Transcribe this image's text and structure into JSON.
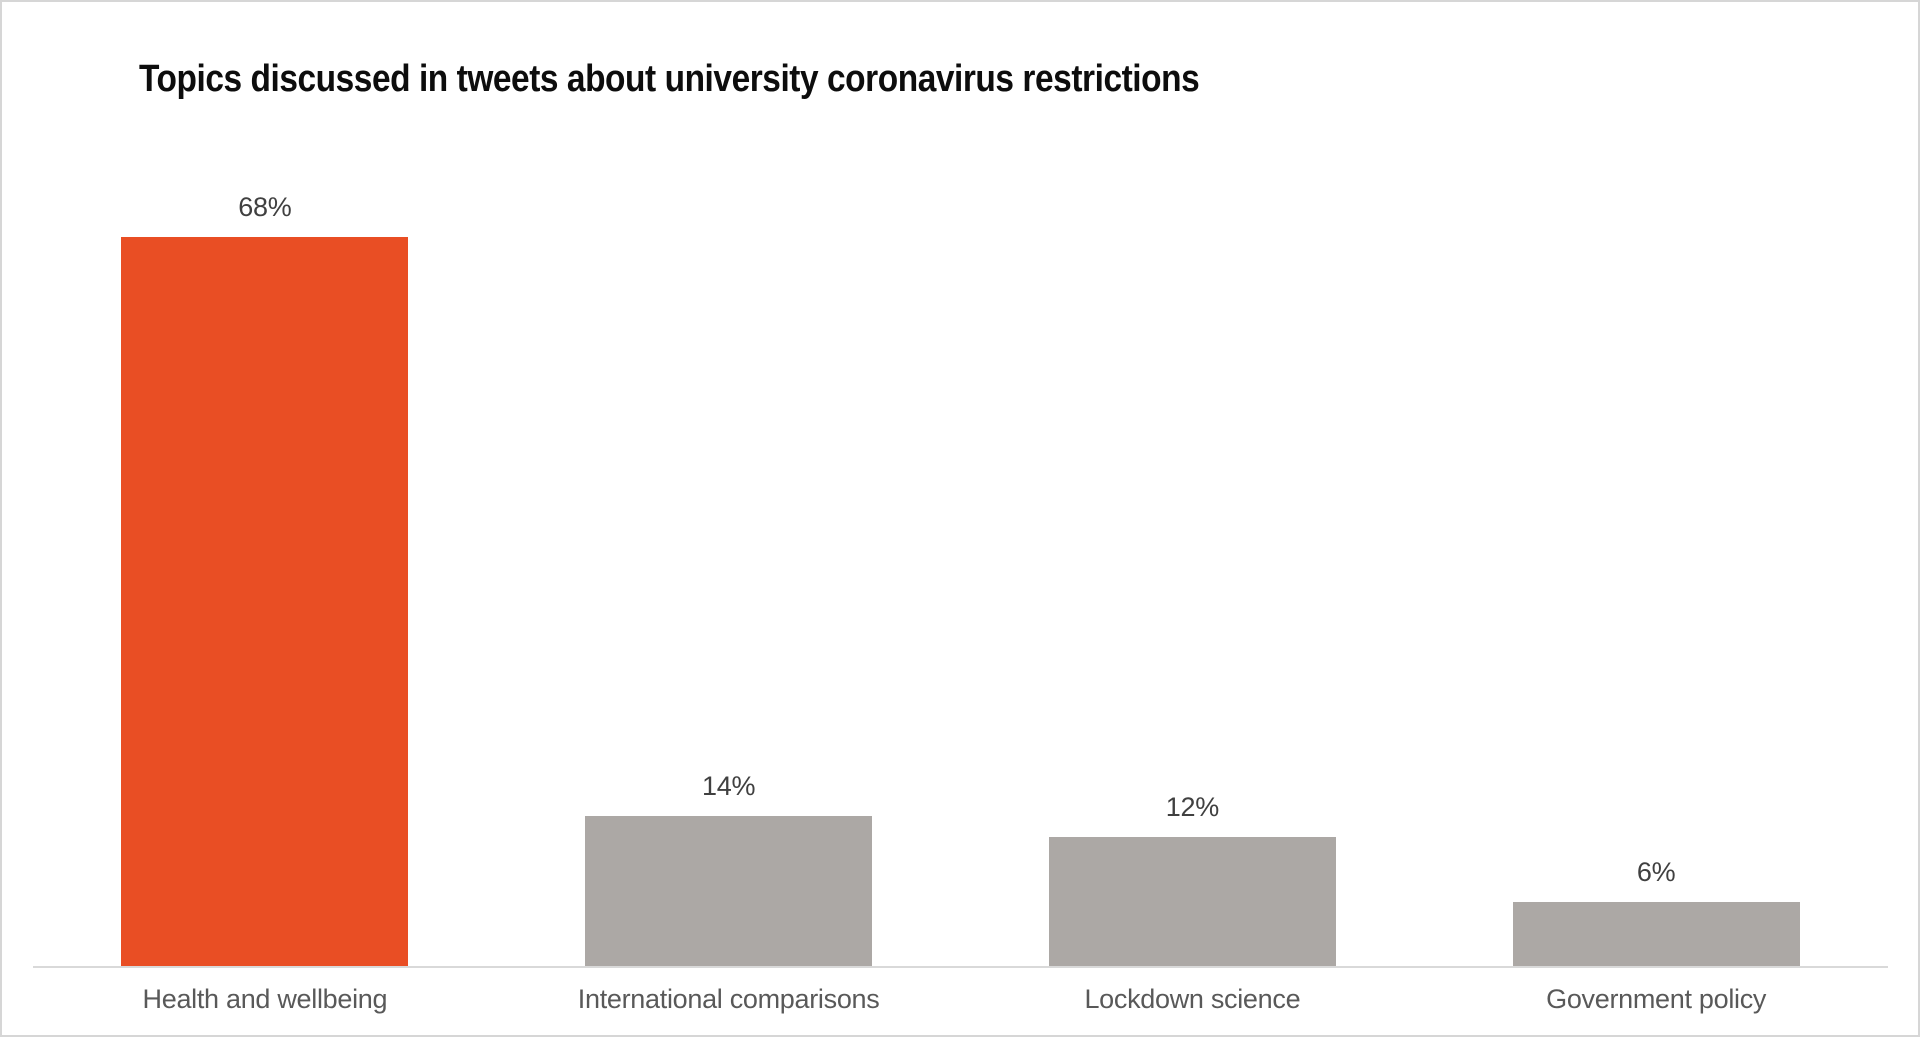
{
  "chart_data": {
    "type": "bar",
    "title": "Topics discussed in tweets about university coronavirus restrictions",
    "categories": [
      "Health and wellbeing",
      "International comparisons",
      "Lockdown science",
      "Government policy"
    ],
    "values": [
      68,
      14,
      12,
      6
    ],
    "value_labels": [
      "68%",
      "14%",
      "12%",
      "6%"
    ],
    "xlabel": "",
    "ylabel": "",
    "ylim": [
      0,
      68
    ],
    "grid": false,
    "legend": false,
    "highlight_index": 0,
    "colors": {
      "highlight_bar": "#e94e24",
      "default_bar": "#aca8a5",
      "axis_line": "#d9d9d9",
      "value_label": "#404040",
      "category_label": "#595959",
      "title": "#0d0d0d",
      "frame_border": "#d6d6d6",
      "background": "#ffffff"
    }
  }
}
